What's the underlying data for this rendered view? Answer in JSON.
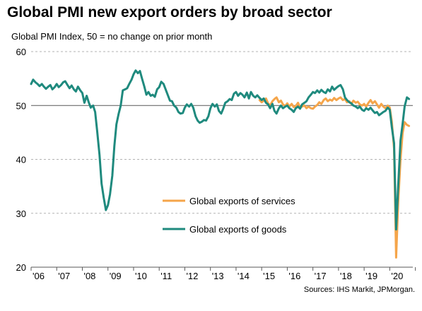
{
  "title": "Global PMI new export orders by broad sector",
  "subtitle": "Global  PMI Index, 50 = no change on prior month",
  "source": "Sources: IHS Markit, JPMorgan.",
  "colors": {
    "services": "#f5a54a",
    "goods": "#1f8a7e",
    "grid": "#b3b3b3",
    "axis": "#595959"
  },
  "chart_data": {
    "type": "line",
    "title": "Global PMI new export orders by broad sector",
    "ylabel": "Global  PMI Index, 50 = no change on prior month",
    "xlabel": "",
    "ylim": [
      20,
      60
    ],
    "y_ticks": [
      "20",
      "30",
      "40",
      "50",
      "60"
    ],
    "x_ticks": [
      "'06",
      "'07",
      "'08",
      "'09",
      "'10",
      "'11",
      "'12",
      "'13",
      "'14",
      "'15",
      "'16",
      "'17",
      "'18",
      "'19",
      "'20"
    ],
    "grid": "horizontal dashed",
    "legend_position": "lower-center",
    "reference_line": 50,
    "series": [
      {
        "name": "Global exports of services",
        "color": "#f5a54a",
        "points": [
          [
            2014.92,
            51.0
          ],
          [
            2015.0,
            50.6
          ],
          [
            2015.08,
            50.9
          ],
          [
            2015.17,
            51.3
          ],
          [
            2015.25,
            50.4
          ],
          [
            2015.33,
            50.0
          ],
          [
            2015.42,
            50.8
          ],
          [
            2015.5,
            51.2
          ],
          [
            2015.58,
            51.5
          ],
          [
            2015.67,
            50.6
          ],
          [
            2015.75,
            50.9
          ],
          [
            2015.83,
            50.2
          ],
          [
            2015.92,
            49.9
          ],
          [
            2016.0,
            50.4
          ],
          [
            2016.08,
            49.8
          ],
          [
            2016.17,
            50.3
          ],
          [
            2016.25,
            49.7
          ],
          [
            2016.33,
            49.9
          ],
          [
            2016.42,
            50.5
          ],
          [
            2016.5,
            49.6
          ],
          [
            2016.58,
            49.8
          ],
          [
            2016.67,
            50.0
          ],
          [
            2016.75,
            49.5
          ],
          [
            2016.83,
            49.8
          ],
          [
            2016.92,
            49.5
          ],
          [
            2017.0,
            49.4
          ],
          [
            2017.08,
            49.8
          ],
          [
            2017.17,
            50.1
          ],
          [
            2017.25,
            50.6
          ],
          [
            2017.33,
            50.3
          ],
          [
            2017.42,
            51.0
          ],
          [
            2017.5,
            51.3
          ],
          [
            2017.58,
            50.8
          ],
          [
            2017.67,
            51.1
          ],
          [
            2017.75,
            50.9
          ],
          [
            2017.83,
            51.4
          ],
          [
            2017.92,
            51.0
          ],
          [
            2018.0,
            51.3
          ],
          [
            2018.08,
            51.5
          ],
          [
            2018.17,
            51.0
          ],
          [
            2018.25,
            51.2
          ],
          [
            2018.33,
            50.6
          ],
          [
            2018.42,
            50.8
          ],
          [
            2018.5,
            50.3
          ],
          [
            2018.58,
            50.9
          ],
          [
            2018.67,
            50.5
          ],
          [
            2018.75,
            50.7
          ],
          [
            2018.83,
            50.2
          ],
          [
            2018.92,
            50.0
          ],
          [
            2019.0,
            50.3
          ],
          [
            2019.08,
            49.8
          ],
          [
            2019.17,
            50.5
          ],
          [
            2019.25,
            51.0
          ],
          [
            2019.33,
            50.4
          ],
          [
            2019.42,
            50.8
          ],
          [
            2019.5,
            50.2
          ],
          [
            2019.58,
            49.6
          ],
          [
            2019.67,
            50.3
          ],
          [
            2019.75,
            49.8
          ],
          [
            2019.83,
            49.5
          ],
          [
            2019.92,
            50.0
          ],
          [
            2020.0,
            49.6
          ],
          [
            2020.08,
            47.0
          ],
          [
            2020.17,
            42.0
          ],
          [
            2020.25,
            21.8
          ],
          [
            2020.33,
            32.0
          ],
          [
            2020.42,
            40.0
          ],
          [
            2020.5,
            44.8
          ],
          [
            2020.58,
            46.9
          ],
          [
            2020.67,
            46.4
          ],
          [
            2020.75,
            46.2
          ]
        ]
      },
      {
        "name": "Global exports of goods",
        "color": "#1f8a7e",
        "points": [
          [
            2006.0,
            54.0
          ],
          [
            2006.08,
            54.8
          ],
          [
            2006.17,
            54.3
          ],
          [
            2006.25,
            54.0
          ],
          [
            2006.33,
            53.6
          ],
          [
            2006.42,
            54.0
          ],
          [
            2006.5,
            53.5
          ],
          [
            2006.58,
            53.1
          ],
          [
            2006.67,
            53.5
          ],
          [
            2006.75,
            53.8
          ],
          [
            2006.83,
            53.0
          ],
          [
            2006.92,
            53.4
          ],
          [
            2007.0,
            54.0
          ],
          [
            2007.08,
            53.4
          ],
          [
            2007.17,
            53.8
          ],
          [
            2007.25,
            54.3
          ],
          [
            2007.33,
            54.5
          ],
          [
            2007.42,
            53.8
          ],
          [
            2007.5,
            53.2
          ],
          [
            2007.58,
            53.7
          ],
          [
            2007.67,
            53.0
          ],
          [
            2007.75,
            52.6
          ],
          [
            2007.83,
            53.5
          ],
          [
            2007.92,
            52.8
          ],
          [
            2008.0,
            52.3
          ],
          [
            2008.08,
            50.5
          ],
          [
            2008.17,
            51.8
          ],
          [
            2008.25,
            50.6
          ],
          [
            2008.33,
            49.6
          ],
          [
            2008.42,
            50.0
          ],
          [
            2008.5,
            48.8
          ],
          [
            2008.58,
            45.2
          ],
          [
            2008.67,
            40.8
          ],
          [
            2008.75,
            35.5
          ],
          [
            2008.83,
            33.0
          ],
          [
            2008.92,
            30.6
          ],
          [
            2009.0,
            31.5
          ],
          [
            2009.08,
            33.5
          ],
          [
            2009.17,
            37.0
          ],
          [
            2009.25,
            42.5
          ],
          [
            2009.33,
            46.5
          ],
          [
            2009.42,
            48.5
          ],
          [
            2009.5,
            50.0
          ],
          [
            2009.58,
            52.8
          ],
          [
            2009.67,
            53.0
          ],
          [
            2009.75,
            53.2
          ],
          [
            2009.83,
            54.0
          ],
          [
            2009.92,
            54.8
          ],
          [
            2010.0,
            55.8
          ],
          [
            2010.08,
            56.5
          ],
          [
            2010.17,
            56.0
          ],
          [
            2010.25,
            56.4
          ],
          [
            2010.33,
            55.0
          ],
          [
            2010.42,
            53.5
          ],
          [
            2010.5,
            52.0
          ],
          [
            2010.58,
            52.5
          ],
          [
            2010.67,
            51.8
          ],
          [
            2010.75,
            52.0
          ],
          [
            2010.83,
            51.6
          ],
          [
            2010.92,
            53.0
          ],
          [
            2011.0,
            53.4
          ],
          [
            2011.08,
            54.4
          ],
          [
            2011.17,
            54.0
          ],
          [
            2011.25,
            53.0
          ],
          [
            2011.33,
            52.0
          ],
          [
            2011.42,
            50.9
          ],
          [
            2011.5,
            50.8
          ],
          [
            2011.58,
            50.0
          ],
          [
            2011.67,
            49.6
          ],
          [
            2011.75,
            48.8
          ],
          [
            2011.83,
            48.5
          ],
          [
            2011.92,
            48.6
          ],
          [
            2012.0,
            49.6
          ],
          [
            2012.08,
            50.2
          ],
          [
            2012.17,
            49.8
          ],
          [
            2012.25,
            50.3
          ],
          [
            2012.33,
            49.6
          ],
          [
            2012.42,
            48.0
          ],
          [
            2012.5,
            47.2
          ],
          [
            2012.58,
            46.8
          ],
          [
            2012.67,
            47.0
          ],
          [
            2012.75,
            47.3
          ],
          [
            2012.83,
            47.2
          ],
          [
            2012.92,
            48.0
          ],
          [
            2013.0,
            49.5
          ],
          [
            2013.08,
            50.3
          ],
          [
            2013.17,
            49.8
          ],
          [
            2013.25,
            50.2
          ],
          [
            2013.33,
            49.0
          ],
          [
            2013.42,
            48.5
          ],
          [
            2013.5,
            49.4
          ],
          [
            2013.58,
            50.5
          ],
          [
            2013.67,
            50.8
          ],
          [
            2013.75,
            51.2
          ],
          [
            2013.83,
            51.0
          ],
          [
            2013.92,
            52.2
          ],
          [
            2014.0,
            52.5
          ],
          [
            2014.08,
            51.8
          ],
          [
            2014.17,
            52.3
          ],
          [
            2014.25,
            52.0
          ],
          [
            2014.33,
            51.5
          ],
          [
            2014.42,
            52.4
          ],
          [
            2014.5,
            51.3
          ],
          [
            2014.58,
            52.5
          ],
          [
            2014.67,
            51.8
          ],
          [
            2014.75,
            51.5
          ],
          [
            2014.83,
            51.9
          ],
          [
            2014.92,
            51.4
          ],
          [
            2015.0,
            51.0
          ],
          [
            2015.08,
            51.3
          ],
          [
            2015.17,
            50.5
          ],
          [
            2015.25,
            50.2
          ],
          [
            2015.33,
            49.5
          ],
          [
            2015.42,
            50.3
          ],
          [
            2015.5,
            49.0
          ],
          [
            2015.58,
            48.5
          ],
          [
            2015.67,
            49.5
          ],
          [
            2015.75,
            50.0
          ],
          [
            2015.83,
            49.5
          ],
          [
            2015.92,
            49.8
          ],
          [
            2016.0,
            50.0
          ],
          [
            2016.08,
            49.5
          ],
          [
            2016.17,
            49.2
          ],
          [
            2016.25,
            48.8
          ],
          [
            2016.33,
            49.5
          ],
          [
            2016.42,
            49.8
          ],
          [
            2016.5,
            49.4
          ],
          [
            2016.58,
            50.2
          ],
          [
            2016.67,
            50.5
          ],
          [
            2016.75,
            50.8
          ],
          [
            2016.83,
            51.5
          ],
          [
            2016.92,
            52.0
          ],
          [
            2017.0,
            52.5
          ],
          [
            2017.08,
            52.3
          ],
          [
            2017.17,
            52.8
          ],
          [
            2017.25,
            52.4
          ],
          [
            2017.33,
            52.9
          ],
          [
            2017.42,
            52.5
          ],
          [
            2017.5,
            52.3
          ],
          [
            2017.58,
            53.0
          ],
          [
            2017.67,
            52.6
          ],
          [
            2017.75,
            53.5
          ],
          [
            2017.83,
            52.9
          ],
          [
            2017.92,
            53.3
          ],
          [
            2018.0,
            53.6
          ],
          [
            2018.08,
            53.8
          ],
          [
            2018.17,
            53.0
          ],
          [
            2018.25,
            51.5
          ],
          [
            2018.33,
            51.0
          ],
          [
            2018.42,
            50.6
          ],
          [
            2018.5,
            50.4
          ],
          [
            2018.58,
            50.0
          ],
          [
            2018.67,
            49.8
          ],
          [
            2018.75,
            49.5
          ],
          [
            2018.83,
            49.8
          ],
          [
            2018.92,
            49.2
          ],
          [
            2019.0,
            49.0
          ],
          [
            2019.08,
            49.5
          ],
          [
            2019.17,
            49.2
          ],
          [
            2019.25,
            49.6
          ],
          [
            2019.33,
            49.1
          ],
          [
            2019.42,
            48.6
          ],
          [
            2019.5,
            48.8
          ],
          [
            2019.58,
            48.2
          ],
          [
            2019.67,
            48.5
          ],
          [
            2019.75,
            48.8
          ],
          [
            2019.83,
            49.0
          ],
          [
            2019.92,
            49.6
          ],
          [
            2020.0,
            49.2
          ],
          [
            2020.08,
            46.0
          ],
          [
            2020.17,
            43.0
          ],
          [
            2020.25,
            27.0
          ],
          [
            2020.33,
            35.0
          ],
          [
            2020.42,
            43.5
          ],
          [
            2020.5,
            46.5
          ],
          [
            2020.58,
            49.8
          ],
          [
            2020.67,
            51.5
          ],
          [
            2020.75,
            51.2
          ]
        ]
      }
    ]
  }
}
